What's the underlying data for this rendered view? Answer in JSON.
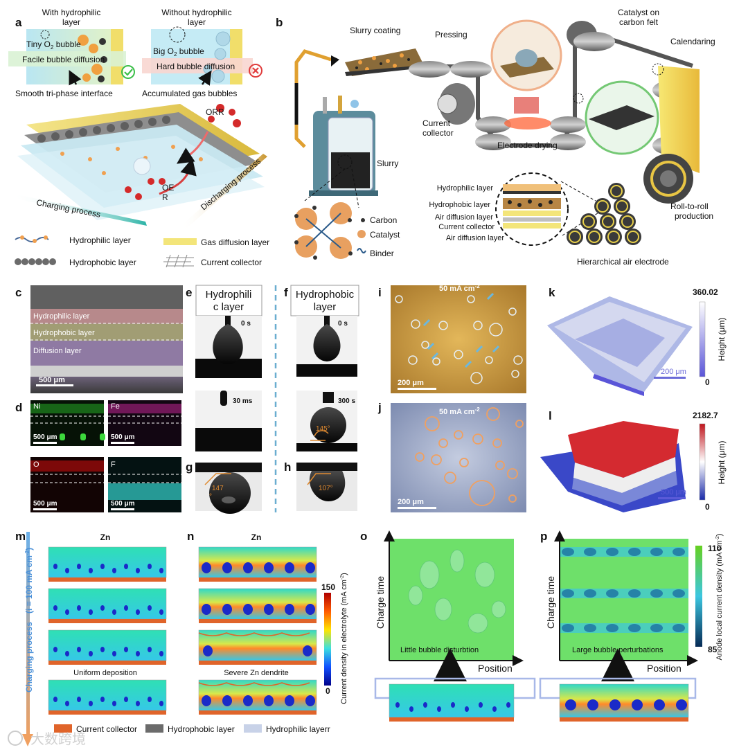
{
  "panel_letters": {
    "a": "a",
    "b": "b",
    "c": "c",
    "d": "d",
    "e": "e",
    "f": "f",
    "g": "g",
    "h": "h",
    "i": "i",
    "j": "j",
    "k": "k",
    "l": "l",
    "m": "m",
    "n": "n",
    "o": "o",
    "p": "p"
  },
  "a": {
    "with_title": "With hydrophilic",
    "with_title2": "layer",
    "without_title": "Without hydrophilic",
    "without_title2": "layer",
    "tiny_bubble": "Tiny O",
    "tiny_bubble_sub": "2",
    "tiny_bubble_suffix": " bubble",
    "big_bubble": "Big O",
    "big_bubble_sub": "2",
    "big_bubble_suffix": " bubble",
    "facile": "Facile bubble diffusion",
    "hard": "Hard bubble diffusion",
    "smooth": "Smooth tri-phase interface",
    "accumulated": "Accumulated gas bubbles",
    "orr": "ORR",
    "oer1": "OE",
    "oer2": "R",
    "charging": "Charging process",
    "discharging": "Discharging process",
    "legend": {
      "hydrophilic": "Hydrophilic layer",
      "hydrophobic": "Hydrophobic layer",
      "gdl": "Gas diffusion layer",
      "collector": "Current collector"
    }
  },
  "b": {
    "slurry_coating": "Slurry coating",
    "pressing": "Pressing",
    "catalyst_felt1": "Catalyst on",
    "catalyst_felt2": "carbon felt",
    "calendaring": "Calendaring",
    "current1": "Current",
    "current2": "collector",
    "drying": "Electrode drying",
    "slurry": "Slurry",
    "carbon": "Carbon",
    "catalyst": "Catalyst",
    "binder": "Binder",
    "layers": [
      "Hydrophilic layer",
      "Hydrophobic layer",
      "Air diffusion layer",
      "Current collector",
      "Air diffusion layer"
    ],
    "roll1": "Roll-to-roll",
    "roll2": "production",
    "hier": "Hierarchical air electrode"
  },
  "c": {
    "hydrophilic": "Hydrophilic layer",
    "hydrophobic": "Hydrophobic layer",
    "diffusion": "Diffusion layer",
    "scale": "500 μm"
  },
  "d": {
    "ni": "Ni",
    "fe": "Fe",
    "o": "O",
    "f": "F",
    "scale": "500 μm"
  },
  "e": {
    "title1": "Hydrophili",
    "title2": "c layer",
    "t0": "0 s",
    "t1": "30 ms"
  },
  "f": {
    "title1": "Hydrophobic",
    "title2": "layer",
    "t0": "0 s",
    "t1": "300 s",
    "angle": "145°"
  },
  "g": {
    "angle1": "147",
    "angle2": "°"
  },
  "h": {
    "angle": "107°"
  },
  "i": {
    "cd": "50 mA cm",
    "sup": "-2",
    "scale": "200 μm"
  },
  "j": {
    "cd": "50 mA cm",
    "sup": "-2",
    "scale": "200 μm"
  },
  "k": {
    "max": "360.02",
    "min": "0",
    "axis": "Height (μm)",
    "scale": "200 μm"
  },
  "l": {
    "max": "2182.7",
    "min": "0",
    "axis": "Height (μm)",
    "scale": "500 μm"
  },
  "m": {
    "title": "Zn",
    "side": "Charging process",
    "side_i": "(i = 100 mA cm",
    "side_sup": "-2",
    "side_close": ")",
    "caption": "Uniform deposition"
  },
  "n": {
    "title": "Zn",
    "caption": "Severe Zn dendrite",
    "cb_max": "150",
    "cb_min": "0",
    "cb_label": "Current density in electrolyte (mA cm",
    "cb_sup": "-2",
    "cb_close": ")"
  },
  "o": {
    "ylab": "Charge time",
    "xlab": "Position",
    "inner": "Little bubble disturbtion"
  },
  "p": {
    "ylab": "Charge time",
    "xlab": "Position",
    "inner": "Large bubble perturbations",
    "cb_max": "110",
    "cb_min": "85",
    "cb_label": "Anode local current density (mA cm",
    "cb_sup": "-2",
    "cb_close": ")"
  },
  "bottom_legend": {
    "collector": "Current collector",
    "hydrophobic": "Hydrophobic layer",
    "hydrophilic": "Hydrophilic layerr"
  },
  "watermark": "大数跨境",
  "colors": {
    "hydrophobic_gray": "#6b6b6b",
    "collector_orange": "#e0642a",
    "gold": "#e8c544",
    "teal": "#5ec8c2",
    "accent_orange": "#f0a060"
  }
}
